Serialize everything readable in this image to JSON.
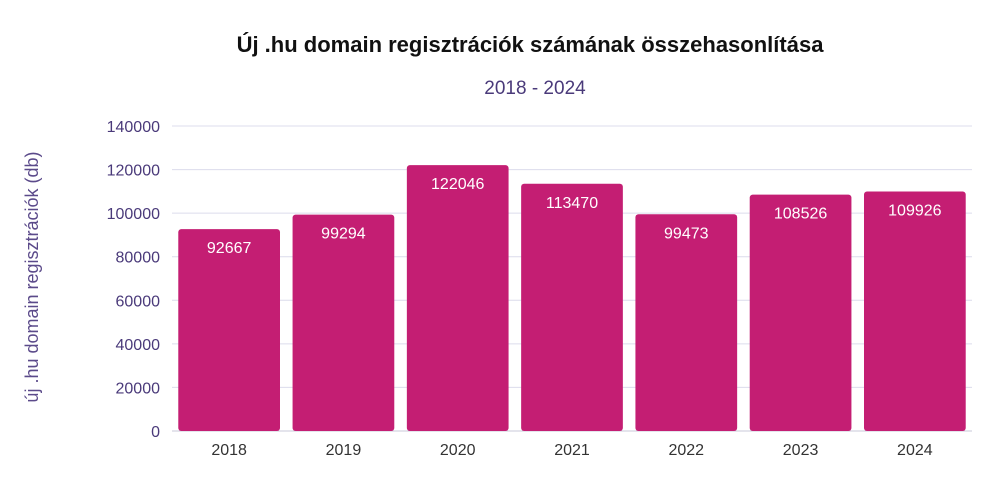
{
  "chart_data": {
    "type": "bar",
    "title": "Új .hu domain regisztrációk számának összehasonlítása",
    "subtitle": "2018 - 2024",
    "xlabel": "",
    "ylabel": "új .hu domain regisztrációk (db)",
    "categories": [
      "2018",
      "2019",
      "2020",
      "2021",
      "2022",
      "2023",
      "2024"
    ],
    "values": [
      92667,
      99294,
      122046,
      113470,
      99473,
      108526,
      109926
    ],
    "ylim": [
      0,
      140000
    ],
    "yticks": [
      0,
      20000,
      40000,
      60000,
      80000,
      100000,
      120000,
      140000
    ],
    "bar_color": "#c41e73",
    "grid": true,
    "legend": "none"
  }
}
